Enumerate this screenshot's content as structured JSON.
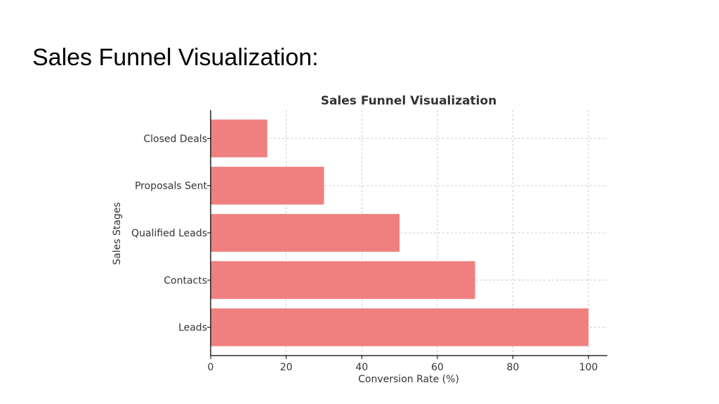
{
  "slide": {
    "title": "Sales Funnel Visualization:"
  },
  "chart_data": {
    "type": "bar",
    "orientation": "horizontal",
    "title": "Sales Funnel Visualization",
    "xlabel": "Conversion Rate (%)",
    "ylabel": "Sales Stages",
    "categories": [
      "Leads",
      "Contacts",
      "Qualified Leads",
      "Proposals Sent",
      "Closed Deals"
    ],
    "values": [
      100,
      70,
      50,
      30,
      15
    ],
    "xlim": [
      0,
      105
    ],
    "xticks": [
      0,
      20,
      40,
      60,
      80,
      100
    ],
    "grid": true,
    "bar_color": "#f08080"
  }
}
